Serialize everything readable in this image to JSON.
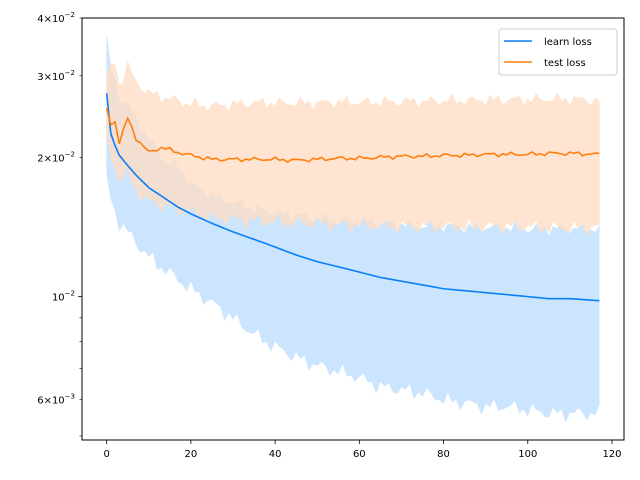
{
  "chart_data": {
    "type": "line",
    "yscale": "log",
    "xlim": [
      -5.85,
      122.85
    ],
    "ylim": [
      0.0049,
      0.04
    ],
    "grid": false,
    "legend_position": "top-right",
    "title": "",
    "xlabel": "",
    "ylabel": "",
    "x_ticks": [
      {
        "value": 0,
        "label": "0"
      },
      {
        "value": 20,
        "label": "20"
      },
      {
        "value": 40,
        "label": "40"
      },
      {
        "value": 60,
        "label": "60"
      },
      {
        "value": 80,
        "label": "80"
      },
      {
        "value": 100,
        "label": "100"
      },
      {
        "value": 120,
        "label": "120"
      }
    ],
    "y_major_ticks": [
      {
        "value": 0.01,
        "mantissa": "10",
        "exponent": "−2"
      }
    ],
    "y_minor_ticks_labeled": [
      {
        "value": 0.006,
        "mantissa": "6×10",
        "exponent": "−3"
      },
      {
        "value": 0.02,
        "mantissa": "2×10",
        "exponent": "−2"
      },
      {
        "value": 0.03,
        "mantissa": "3×10",
        "exponent": "−2"
      },
      {
        "value": 0.04,
        "mantissa": "4×10",
        "exponent": "−2"
      }
    ],
    "y_minor_ticks_unlabeled": [
      0.005,
      0.007,
      0.008,
      0.009
    ],
    "x_keypoints": [
      0,
      1,
      2,
      3,
      5,
      7,
      10,
      13,
      17,
      20,
      25,
      30,
      35,
      40,
      45,
      50,
      55,
      60,
      65,
      70,
      75,
      80,
      85,
      90,
      95,
      100,
      105,
      110,
      117
    ],
    "series": [
      {
        "name": "learn loss",
        "color": "#1f77b4",
        "line_color": "#0a7ff5",
        "band_color": "#cce5ff",
        "mean": [
          0.0275,
          0.0225,
          0.0212,
          0.0202,
          0.0192,
          0.0183,
          0.0172,
          0.0165,
          0.0156,
          0.0151,
          0.0144,
          0.0138,
          0.0133,
          0.0128,
          0.0123,
          0.0119,
          0.0116,
          0.0113,
          0.011,
          0.0108,
          0.0106,
          0.0104,
          0.0103,
          0.0102,
          0.0101,
          0.01,
          0.0099,
          0.0099,
          0.0098
        ],
        "upper": [
          0.036,
          0.031,
          0.029,
          0.027,
          0.026,
          0.024,
          0.022,
          0.02,
          0.019,
          0.0175,
          0.0165,
          0.016,
          0.0155,
          0.0152,
          0.015,
          0.0148,
          0.0146,
          0.0145,
          0.0144,
          0.0143,
          0.0142,
          0.0142,
          0.0141,
          0.0141,
          0.0141,
          0.014,
          0.014,
          0.014,
          0.014
        ],
        "lower": [
          0.0178,
          0.0163,
          0.0152,
          0.0145,
          0.0138,
          0.0131,
          0.0122,
          0.0116,
          0.0109,
          0.0104,
          0.0097,
          0.009,
          0.0083,
          0.0078,
          0.0074,
          0.0071,
          0.0069,
          0.0067,
          0.0064,
          0.0063,
          0.0062,
          0.006,
          0.0059,
          0.0058,
          0.0058,
          0.0057,
          0.0056,
          0.0056,
          0.0056
        ]
      },
      {
        "name": "test loss",
        "color": "#ff7f0e",
        "line_color": "#ff7f0e",
        "band_color": "#ffdcc1",
        "mean": [
          0.0255,
          0.0235,
          0.024,
          0.0215,
          0.0243,
          0.022,
          0.0205,
          0.021,
          0.0205,
          0.0202,
          0.0198,
          0.0198,
          0.0198,
          0.0198,
          0.0197,
          0.0198,
          0.0199,
          0.0199,
          0.02,
          0.0201,
          0.0201,
          0.0202,
          0.0202,
          0.0203,
          0.0203,
          0.0203,
          0.0204,
          0.0204,
          0.0203
        ],
        "upper": [
          0.03,
          0.031,
          0.032,
          0.0285,
          0.0315,
          0.029,
          0.0275,
          0.027,
          0.0265,
          0.026,
          0.0258,
          0.026,
          0.0262,
          0.0262,
          0.0262,
          0.0262,
          0.0263,
          0.0263,
          0.0263,
          0.0264,
          0.0264,
          0.0265,
          0.0265,
          0.0266,
          0.0266,
          0.0266,
          0.0267,
          0.0267,
          0.0265
        ],
        "lower": [
          0.0215,
          0.02,
          0.019,
          0.018,
          0.0185,
          0.017,
          0.016,
          0.0158,
          0.0155,
          0.0152,
          0.0148,
          0.0147,
          0.0146,
          0.0145,
          0.0144,
          0.0144,
          0.0143,
          0.0143,
          0.0142,
          0.0142,
          0.0142,
          0.0142,
          0.0142,
          0.0142,
          0.0142,
          0.0142,
          0.0141,
          0.0141,
          0.0141
        ]
      }
    ]
  }
}
